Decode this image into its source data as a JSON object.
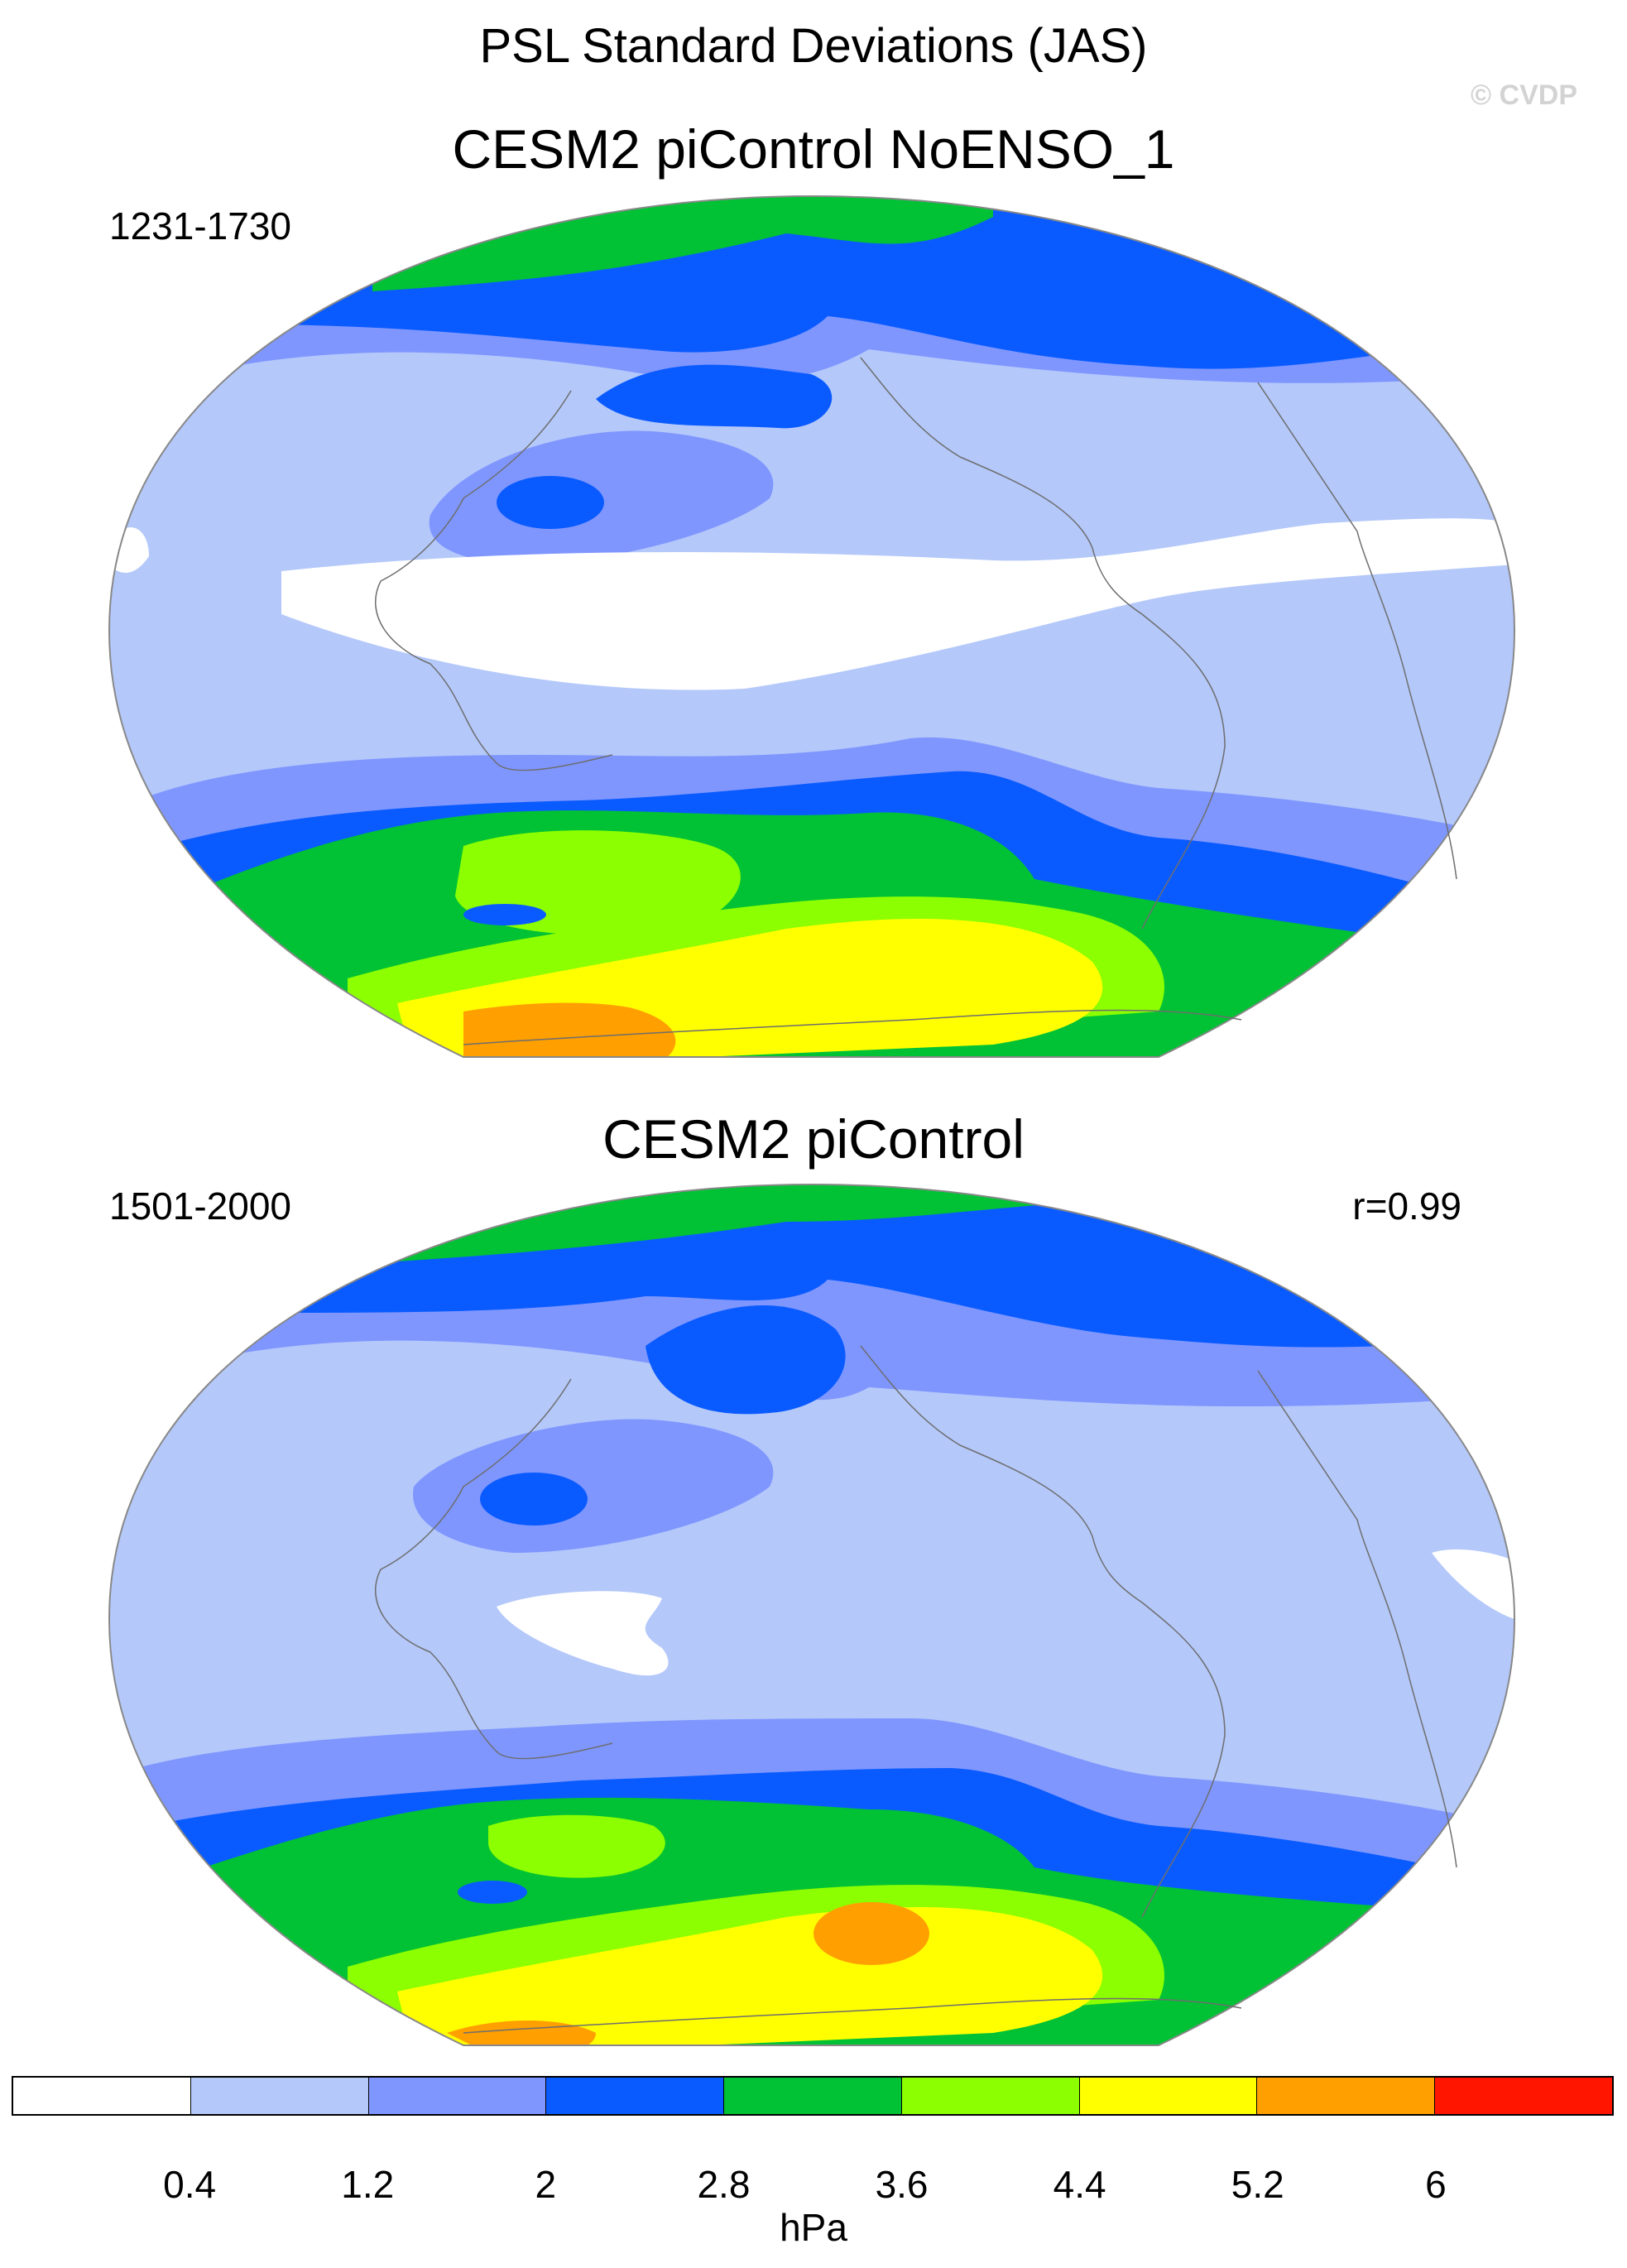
{
  "title": "PSL Standard Deviations (JAS)",
  "copyright": "© CVDP",
  "panels": [
    {
      "title": "CESM2 piControl NoENSO_1",
      "years": "1231-1730",
      "corr": ""
    },
    {
      "title": "CESM2 piControl",
      "years": "1501-2000",
      "corr": "r=0.99"
    }
  ],
  "colorbar": {
    "unit": "hPa",
    "colors": [
      "#ffffff",
      "#b4c8fa",
      "#7f96ff",
      "#0a5bff",
      "#00c234",
      "#8cff00",
      "#ffff00",
      "#ff9f00",
      "#ff1500"
    ],
    "labels": [
      "0.4",
      "1.2",
      "2",
      "2.8",
      "3.6",
      "4.4",
      "5.2",
      "6"
    ]
  }
}
